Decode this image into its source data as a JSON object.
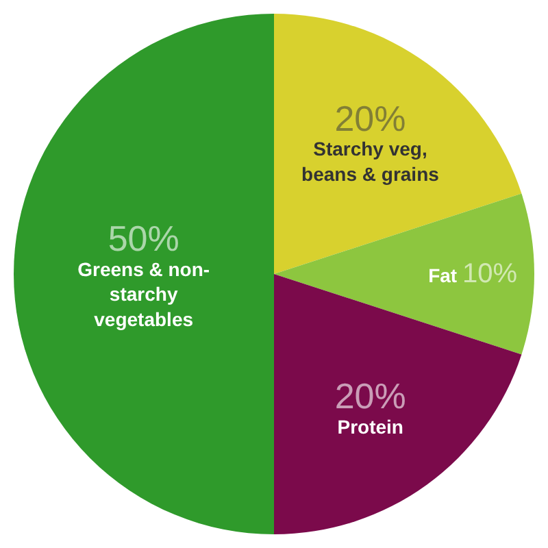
{
  "chart_data": {
    "type": "pie",
    "categories": [
      "Starchy veg, beans & grains",
      "Fat",
      "Protein",
      "Greens & non-starchy vegetables"
    ],
    "values": [
      20,
      10,
      20,
      50
    ],
    "value_labels": [
      "20%",
      "10%",
      "20%",
      "50%"
    ],
    "colors": [
      "#d8d12e",
      "#8dc63f",
      "#7b0a4b",
      "#2f9a2b"
    ],
    "legend": false
  }
}
